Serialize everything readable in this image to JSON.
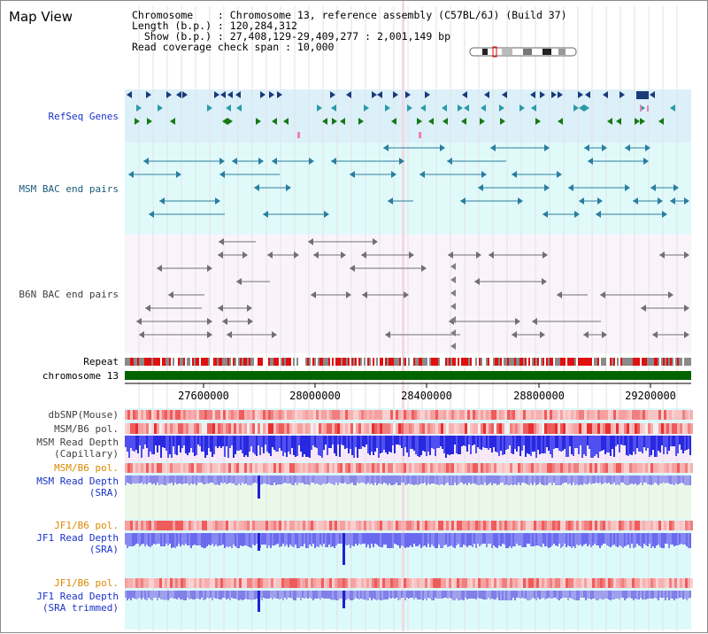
{
  "view": {
    "title": "Map View",
    "meta_lines": [
      "Chromosome    : Chromosome 13, reference assembly (C57BL/6J) (Build 37)",
      "Length (b.p.) : 120,284,312",
      "  Show (b.p.) : 27,408,129-29,409,277 : 2,001,149 bp",
      "Read coverage check span : 10,000"
    ]
  },
  "tracks": {
    "refseq": "RefSeq Genes",
    "msm_bac": "MSM BAC end pairs",
    "b6n_bac": "B6N BAC end pairs",
    "repeat": "Repeat",
    "chromosome": "chromosome 13",
    "dbsnp": "dbSNP(Mouse)",
    "msm_b6_pol_1": "MSM/B6 pol.",
    "msm_depth_cap_1": "MSM Read Depth",
    "msm_depth_cap_2": "(Capillary)",
    "msm_b6_pol_2": "MSM/B6 pol.",
    "msm_depth_sra_1": "MSM Read Depth",
    "msm_depth_sra_2": "(SRA)",
    "jf1_b6_pol_1": "JF1/B6 pol.",
    "jf1_depth_sra_1": "JF1 Read Depth",
    "jf1_depth_sra_2": "(SRA)",
    "jf1_b6_pol_2": "JF1/B6 pol.",
    "jf1_depth_trim_1": "JF1 Read Depth",
    "jf1_depth_trim_2": "(SRA trimmed)"
  },
  "axis": {
    "ticks": [
      "27600000",
      "28000000",
      "28400000",
      "28800000",
      "29200000"
    ]
  },
  "colors": {
    "refseq_bg": "#dcf0fa",
    "bac_bg": "#e0fafa",
    "b6n_bg": "#faf4fa",
    "chromosome": "#006400",
    "repeat_red": "#e01010",
    "depth_blue": "#3030e0"
  }
}
